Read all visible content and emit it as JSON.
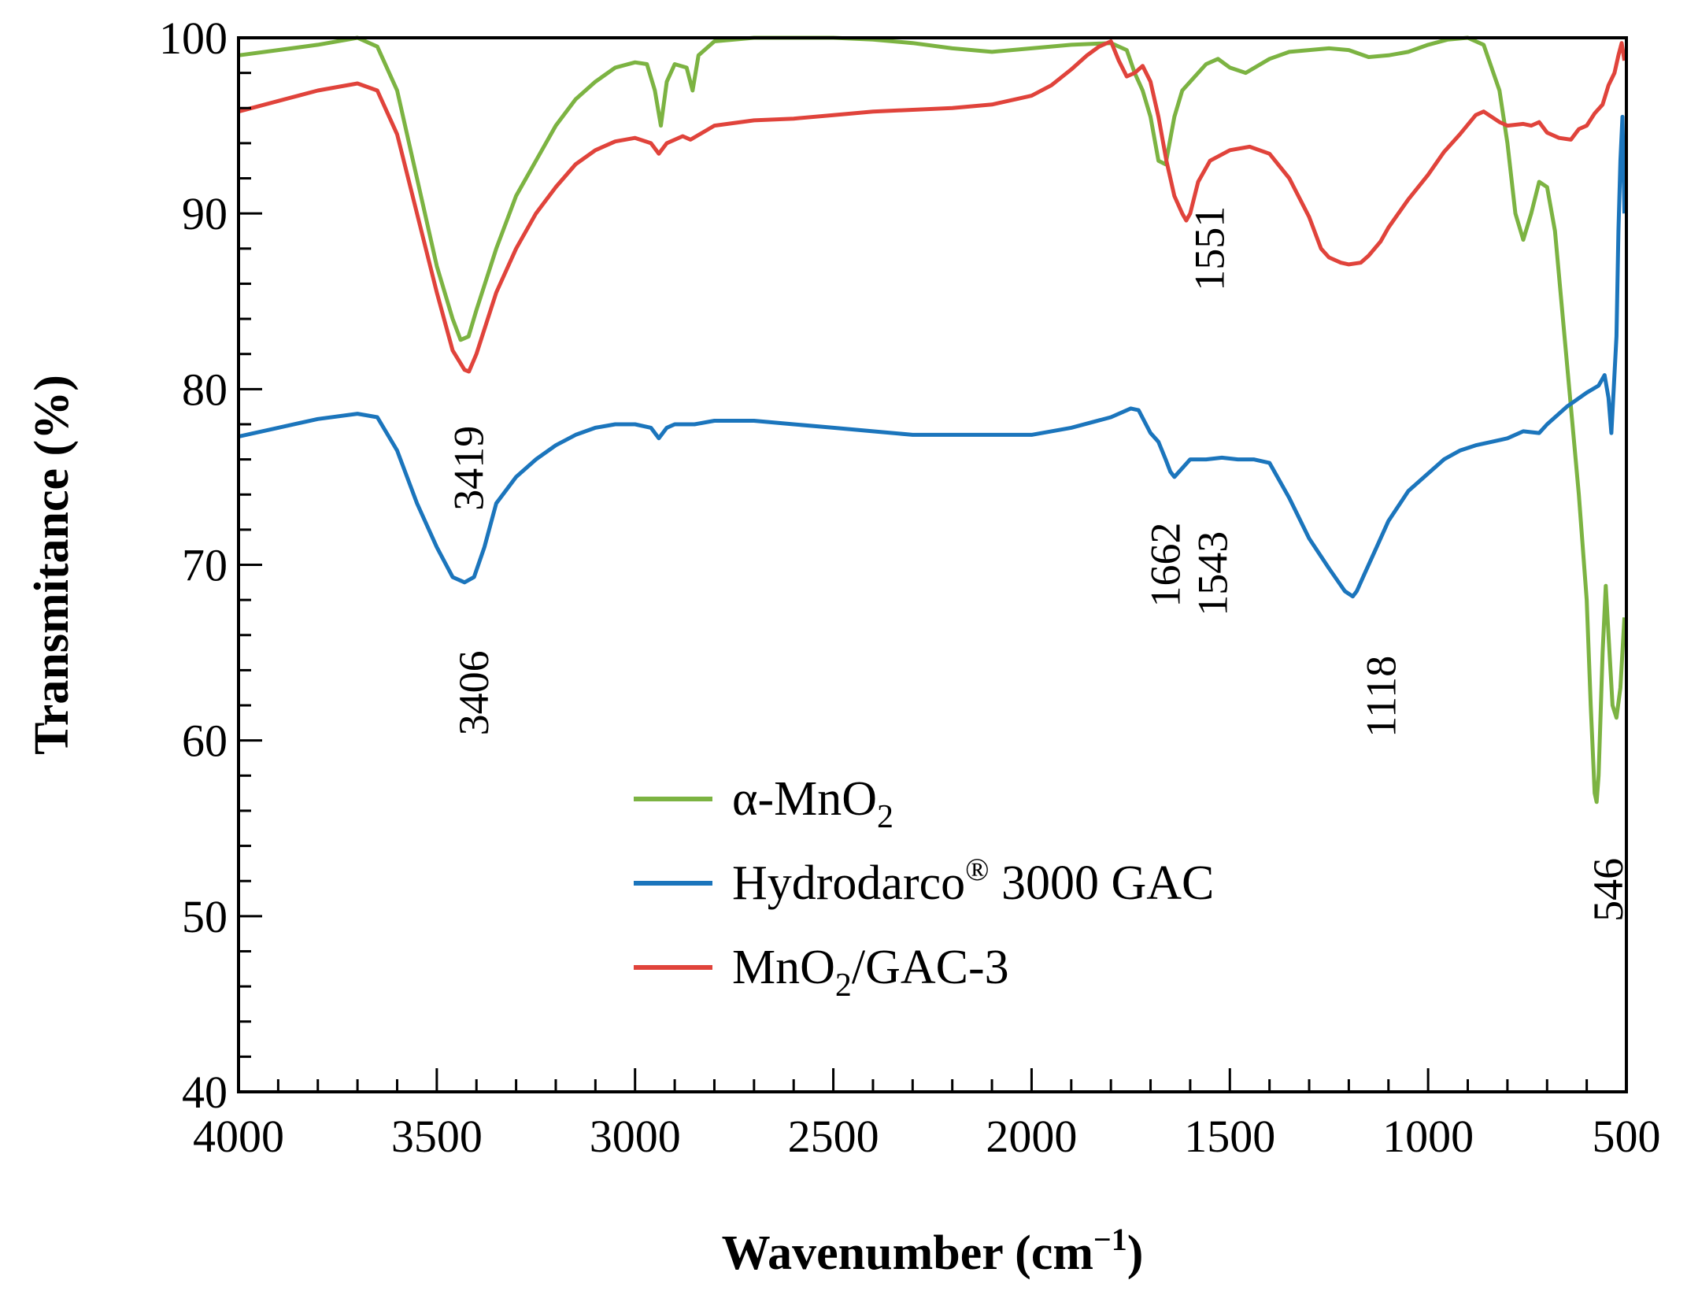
{
  "chart_data": {
    "type": "line",
    "xlabel": "Wavenumber (cm",
    "xlabel_sup": "−1",
    "xlabel_end": ")",
    "ylabel": "Transmitance (%)",
    "xlim": [
      4000,
      500
    ],
    "ylim": [
      40,
      100
    ],
    "x_ticks": [
      "4000",
      "3500",
      "3000",
      "2500",
      "2000",
      "1500",
      "1000",
      "500"
    ],
    "y_ticks": [
      "40",
      "50",
      "60",
      "70",
      "80",
      "90",
      "100"
    ],
    "legend_position": "center",
    "series": [
      {
        "name": "α-MnO",
        "name_sub": "2",
        "name_end": "",
        "color": "#7cb342",
        "points": [
          [
            4000,
            99
          ],
          [
            3900,
            99.3
          ],
          [
            3800,
            99.6
          ],
          [
            3700,
            100
          ],
          [
            3650,
            99.5
          ],
          [
            3600,
            97
          ],
          [
            3550,
            92
          ],
          [
            3500,
            87
          ],
          [
            3460,
            84
          ],
          [
            3440,
            82.8
          ],
          [
            3420,
            83
          ],
          [
            3400,
            84.5
          ],
          [
            3350,
            88
          ],
          [
            3300,
            91
          ],
          [
            3250,
            93
          ],
          [
            3200,
            95
          ],
          [
            3150,
            96.5
          ],
          [
            3100,
            97.5
          ],
          [
            3050,
            98.3
          ],
          [
            3000,
            98.6
          ],
          [
            2970,
            98.5
          ],
          [
            2950,
            97
          ],
          [
            2935,
            95
          ],
          [
            2920,
            97.5
          ],
          [
            2900,
            98.5
          ],
          [
            2870,
            98.3
          ],
          [
            2855,
            97
          ],
          [
            2840,
            99
          ],
          [
            2800,
            99.8
          ],
          [
            2700,
            100
          ],
          [
            2600,
            100
          ],
          [
            2500,
            100
          ],
          [
            2400,
            99.9
          ],
          [
            2300,
            99.7
          ],
          [
            2200,
            99.4
          ],
          [
            2100,
            99.2
          ],
          [
            2000,
            99.4
          ],
          [
            1900,
            99.6
          ],
          [
            1800,
            99.7
          ],
          [
            1760,
            99.3
          ],
          [
            1740,
            98
          ],
          [
            1720,
            97
          ],
          [
            1700,
            95.5
          ],
          [
            1680,
            93
          ],
          [
            1662,
            92.8
          ],
          [
            1640,
            95.5
          ],
          [
            1620,
            97
          ],
          [
            1600,
            97.5
          ],
          [
            1560,
            98.5
          ],
          [
            1530,
            98.8
          ],
          [
            1500,
            98.3
          ],
          [
            1460,
            98
          ],
          [
            1400,
            98.8
          ],
          [
            1350,
            99.2
          ],
          [
            1300,
            99.3
          ],
          [
            1250,
            99.4
          ],
          [
            1200,
            99.3
          ],
          [
            1150,
            98.9
          ],
          [
            1100,
            99
          ],
          [
            1050,
            99.2
          ],
          [
            1000,
            99.6
          ],
          [
            950,
            99.9
          ],
          [
            900,
            100
          ],
          [
            860,
            99.6
          ],
          [
            820,
            97
          ],
          [
            800,
            94
          ],
          [
            780,
            90
          ],
          [
            760,
            88.5
          ],
          [
            740,
            90
          ],
          [
            720,
            91.8
          ],
          [
            700,
            91.5
          ],
          [
            680,
            89
          ],
          [
            660,
            84
          ],
          [
            640,
            79
          ],
          [
            620,
            74
          ],
          [
            600,
            68
          ],
          [
            590,
            62
          ],
          [
            580,
            57
          ],
          [
            575,
            56.5
          ],
          [
            570,
            58
          ],
          [
            560,
            65
          ],
          [
            552,
            68.8
          ],
          [
            545,
            66
          ],
          [
            535,
            62
          ],
          [
            525,
            61.3
          ],
          [
            515,
            63
          ],
          [
            505,
            67
          ]
        ]
      },
      {
        "name": "Hydrodarco",
        "name_sup": "®",
        "name_end": " 3000 GAC",
        "color": "#1b75bc",
        "points": [
          [
            4000,
            77.3
          ],
          [
            3900,
            77.8
          ],
          [
            3800,
            78.3
          ],
          [
            3700,
            78.6
          ],
          [
            3650,
            78.4
          ],
          [
            3600,
            76.5
          ],
          [
            3550,
            73.5
          ],
          [
            3500,
            71
          ],
          [
            3460,
            69.3
          ],
          [
            3430,
            69
          ],
          [
            3406,
            69.3
          ],
          [
            3380,
            71
          ],
          [
            3350,
            73.5
          ],
          [
            3300,
            75
          ],
          [
            3250,
            76
          ],
          [
            3200,
            76.8
          ],
          [
            3150,
            77.4
          ],
          [
            3100,
            77.8
          ],
          [
            3050,
            78
          ],
          [
            3000,
            78
          ],
          [
            2960,
            77.8
          ],
          [
            2940,
            77.2
          ],
          [
            2920,
            77.8
          ],
          [
            2900,
            78
          ],
          [
            2850,
            78
          ],
          [
            2800,
            78.2
          ],
          [
            2700,
            78.2
          ],
          [
            2600,
            78
          ],
          [
            2500,
            77.8
          ],
          [
            2400,
            77.6
          ],
          [
            2300,
            77.4
          ],
          [
            2200,
            77.4
          ],
          [
            2100,
            77.4
          ],
          [
            2000,
            77.4
          ],
          [
            1900,
            77.8
          ],
          [
            1800,
            78.4
          ],
          [
            1750,
            78.9
          ],
          [
            1730,
            78.8
          ],
          [
            1700,
            77.5
          ],
          [
            1680,
            77
          ],
          [
            1662,
            76
          ],
          [
            1650,
            75.3
          ],
          [
            1640,
            75
          ],
          [
            1620,
            75.5
          ],
          [
            1600,
            76
          ],
          [
            1560,
            76
          ],
          [
            1520,
            76.1
          ],
          [
            1480,
            76
          ],
          [
            1440,
            76
          ],
          [
            1400,
            75.8
          ],
          [
            1380,
            75
          ],
          [
            1350,
            73.8
          ],
          [
            1300,
            71.5
          ],
          [
            1250,
            69.8
          ],
          [
            1210,
            68.5
          ],
          [
            1190,
            68.2
          ],
          [
            1180,
            68.5
          ],
          [
            1160,
            69.5
          ],
          [
            1130,
            71
          ],
          [
            1100,
            72.5
          ],
          [
            1050,
            74.2
          ],
          [
            1000,
            75.2
          ],
          [
            960,
            76
          ],
          [
            920,
            76.5
          ],
          [
            880,
            76.8
          ],
          [
            840,
            77
          ],
          [
            800,
            77.2
          ],
          [
            760,
            77.6
          ],
          [
            720,
            77.5
          ],
          [
            700,
            78
          ],
          [
            650,
            79
          ],
          [
            600,
            79.8
          ],
          [
            570,
            80.2
          ],
          [
            555,
            80.8
          ],
          [
            545,
            79.5
          ],
          [
            538,
            77.5
          ],
          [
            532,
            80
          ],
          [
            525,
            83
          ],
          [
            520,
            89
          ],
          [
            515,
            93
          ],
          [
            510,
            95.5
          ],
          [
            505,
            90
          ]
        ]
      },
      {
        "name": "MnO",
        "name_sub": "2",
        "name_end": "/GAC-3",
        "color": "#e0433b",
        "points": [
          [
            4000,
            95.8
          ],
          [
            3900,
            96.4
          ],
          [
            3800,
            97
          ],
          [
            3700,
            97.4
          ],
          [
            3650,
            97
          ],
          [
            3600,
            94.5
          ],
          [
            3550,
            90
          ],
          [
            3500,
            85.5
          ],
          [
            3460,
            82.2
          ],
          [
            3430,
            81.1
          ],
          [
            3419,
            81
          ],
          [
            3400,
            82
          ],
          [
            3350,
            85.5
          ],
          [
            3300,
            88
          ],
          [
            3250,
            90
          ],
          [
            3200,
            91.5
          ],
          [
            3150,
            92.8
          ],
          [
            3100,
            93.6
          ],
          [
            3050,
            94.1
          ],
          [
            3000,
            94.3
          ],
          [
            2960,
            94
          ],
          [
            2940,
            93.4
          ],
          [
            2920,
            94
          ],
          [
            2880,
            94.4
          ],
          [
            2860,
            94.2
          ],
          [
            2800,
            95
          ],
          [
            2700,
            95.3
          ],
          [
            2600,
            95.4
          ],
          [
            2500,
            95.6
          ],
          [
            2400,
            95.8
          ],
          [
            2300,
            95.9
          ],
          [
            2200,
            96
          ],
          [
            2100,
            96.2
          ],
          [
            2000,
            96.7
          ],
          [
            1950,
            97.3
          ],
          [
            1900,
            98.2
          ],
          [
            1860,
            99
          ],
          [
            1830,
            99.5
          ],
          [
            1800,
            99.8
          ],
          [
            1780,
            98.7
          ],
          [
            1760,
            97.8
          ],
          [
            1740,
            98
          ],
          [
            1720,
            98.4
          ],
          [
            1700,
            97.5
          ],
          [
            1680,
            95.5
          ],
          [
            1660,
            93
          ],
          [
            1640,
            91
          ],
          [
            1620,
            90
          ],
          [
            1610,
            89.6
          ],
          [
            1600,
            90
          ],
          [
            1580,
            91.8
          ],
          [
            1550,
            93
          ],
          [
            1500,
            93.6
          ],
          [
            1450,
            93.8
          ],
          [
            1400,
            93.4
          ],
          [
            1350,
            92
          ],
          [
            1300,
            89.8
          ],
          [
            1270,
            88
          ],
          [
            1250,
            87.5
          ],
          [
            1220,
            87.2
          ],
          [
            1200,
            87.1
          ],
          [
            1170,
            87.2
          ],
          [
            1150,
            87.6
          ],
          [
            1120,
            88.4
          ],
          [
            1100,
            89.2
          ],
          [
            1050,
            90.8
          ],
          [
            1000,
            92.2
          ],
          [
            960,
            93.5
          ],
          [
            920,
            94.5
          ],
          [
            880,
            95.6
          ],
          [
            860,
            95.8
          ],
          [
            820,
            95.2
          ],
          [
            800,
            95
          ],
          [
            760,
            95.1
          ],
          [
            740,
            95
          ],
          [
            720,
            95.2
          ],
          [
            700,
            94.6
          ],
          [
            670,
            94.3
          ],
          [
            640,
            94.2
          ],
          [
            620,
            94.8
          ],
          [
            600,
            95
          ],
          [
            580,
            95.7
          ],
          [
            560,
            96.2
          ],
          [
            545,
            97.3
          ],
          [
            530,
            98
          ],
          [
            520,
            99
          ],
          [
            512,
            99.7
          ],
          [
            505,
            98.7
          ]
        ]
      }
    ],
    "annotations": [
      {
        "text": "3419",
        "x": 3419,
        "y": 75.5
      },
      {
        "text": "3406",
        "x": 3406,
        "y": 62.7
      },
      {
        "text": "1551",
        "x": 1551,
        "y": 88
      },
      {
        "text": "1662",
        "x": 1662,
        "y": 70
      },
      {
        "text": "1543",
        "x": 1543,
        "y": 69.5
      },
      {
        "text": "1118",
        "x": 1118,
        "y": 62.5
      },
      {
        "text": "546",
        "x": 546,
        "y": 51.5
      }
    ]
  }
}
